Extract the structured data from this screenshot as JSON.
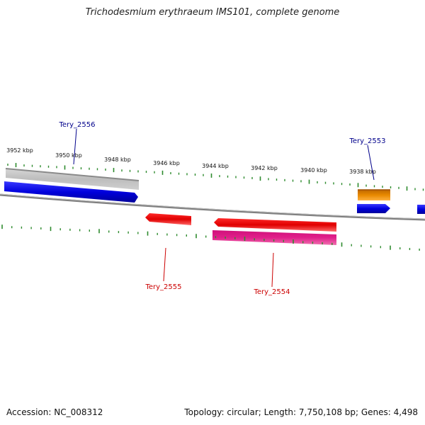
{
  "title": "Trichodesmium erythraeum IMS101, complete genome",
  "footer": {
    "accession": "Accession: NC_008312",
    "info": "Topology: circular; Length: 7,750,108 bp; Genes: 4,498"
  },
  "colors": {
    "backbone": "#7f7f7f",
    "tick_green": "#2e8b2e",
    "forward_blue": "#0000dd",
    "gray_feature": "#b8b8b8",
    "orange_feature": "#e88a00",
    "red_feature": "#e00000",
    "pink_feature": "#e0208a",
    "label_blue": "#00008b",
    "label_red": "#cc0000"
  },
  "scale_labels": [
    "3952 kbp",
    "3950 kbp",
    "3948 kbp",
    "3946 kbp",
    "3944 kbp",
    "3942 kbp",
    "3940 kbp",
    "3938 kbp"
  ],
  "genes": [
    {
      "name": "Tery_2556",
      "strand": "forward"
    },
    {
      "name": "Tery_2553",
      "strand": "forward"
    },
    {
      "name": "Tery_2555",
      "strand": "reverse"
    },
    {
      "name": "Tery_2554",
      "strand": "reverse"
    }
  ]
}
